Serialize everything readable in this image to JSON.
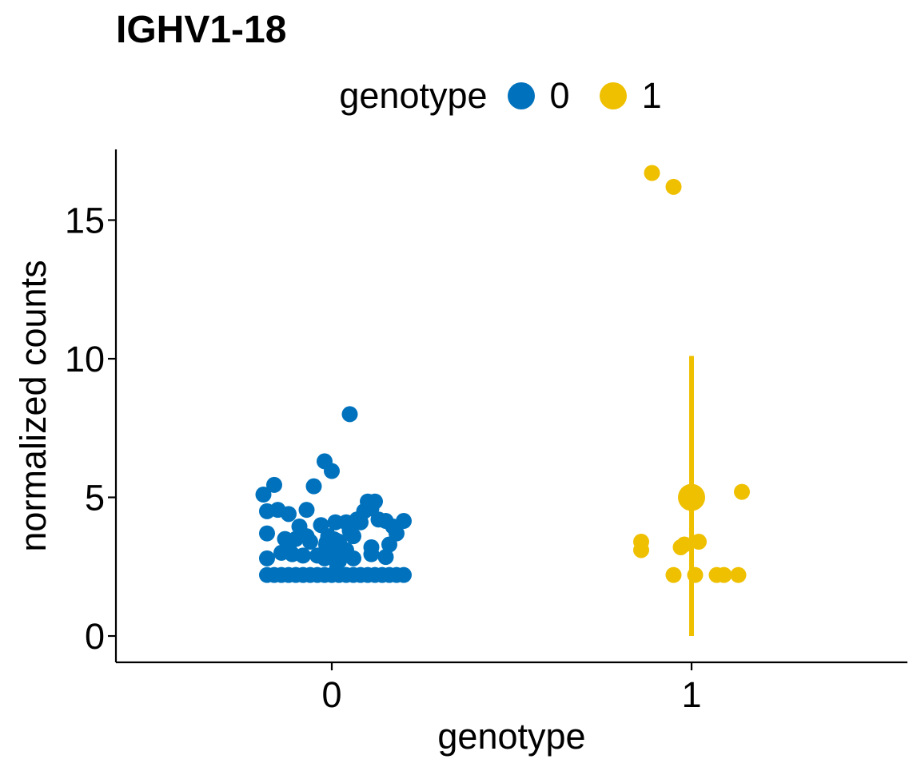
{
  "chart_data": {
    "type": "scatter",
    "title": "IGHV1-18",
    "xlabel": "genotype",
    "ylabel": "normalized counts",
    "categories": [
      "0",
      "1"
    ],
    "y_ticks": [
      0,
      5,
      10,
      15
    ],
    "ylim": [
      -0.95,
      17.55
    ],
    "xlim": [
      0.4,
      2.6
    ],
    "legend": {
      "title": "genotype",
      "position": "top",
      "entries": [
        {
          "label": "0",
          "color": "#0072BD"
        },
        {
          "label": "1",
          "color": "#EFC000"
        }
      ]
    },
    "grid": false,
    "series": [
      {
        "name": "0",
        "color": "#0072BD",
        "points": [
          [
            -0.19,
            5.1
          ],
          [
            -0.16,
            5.45
          ],
          [
            -0.18,
            4.5
          ],
          [
            -0.15,
            4.55
          ],
          [
            -0.12,
            4.4
          ],
          [
            -0.18,
            3.7
          ],
          [
            -0.13,
            3.5
          ],
          [
            -0.1,
            3.5
          ],
          [
            -0.12,
            3.2
          ],
          [
            -0.14,
            3.0
          ],
          [
            -0.11,
            2.95
          ],
          [
            -0.18,
            2.8
          ],
          [
            -0.07,
            3.6
          ],
          [
            -0.08,
            2.9
          ],
          [
            -0.06,
            3.4
          ],
          [
            -0.05,
            5.4
          ],
          [
            -0.07,
            4.55
          ],
          [
            -0.09,
            3.95
          ],
          [
            -0.04,
            2.9
          ],
          [
            -0.02,
            6.3
          ],
          [
            0.0,
            5.95
          ],
          [
            0.05,
            8.0
          ],
          [
            -0.03,
            4.0
          ],
          [
            -0.01,
            3.6
          ],
          [
            0.01,
            4.1
          ],
          [
            0.02,
            3.4
          ],
          [
            0.03,
            3.0
          ],
          [
            -0.02,
            2.8
          ],
          [
            0.0,
            3.3
          ],
          [
            0.04,
            4.1
          ],
          [
            0.05,
            3.8
          ],
          [
            0.06,
            3.6
          ],
          [
            0.04,
            3.1
          ],
          [
            0.06,
            2.8
          ],
          [
            0.02,
            2.7
          ],
          [
            0.07,
            4.2
          ],
          [
            0.08,
            4.1
          ],
          [
            0.09,
            4.5
          ],
          [
            0.1,
            4.85
          ],
          [
            0.12,
            4.85
          ],
          [
            0.11,
            4.6
          ],
          [
            0.11,
            3.2
          ],
          [
            0.11,
            2.95
          ],
          [
            0.13,
            4.2
          ],
          [
            0.15,
            4.15
          ],
          [
            0.17,
            3.95
          ],
          [
            0.18,
            3.7
          ],
          [
            0.16,
            3.3
          ],
          [
            0.15,
            2.85
          ],
          [
            0.2,
            4.15
          ],
          [
            -0.18,
            2.2
          ],
          [
            -0.16,
            2.2
          ],
          [
            -0.14,
            2.2
          ],
          [
            -0.12,
            2.2
          ],
          [
            -0.1,
            2.2
          ],
          [
            -0.08,
            2.2
          ],
          [
            -0.06,
            2.2
          ],
          [
            -0.04,
            2.2
          ],
          [
            -0.02,
            2.2
          ],
          [
            0.0,
            2.2
          ],
          [
            0.02,
            2.2
          ],
          [
            0.04,
            2.2
          ],
          [
            0.06,
            2.2
          ],
          [
            0.08,
            2.2
          ],
          [
            0.1,
            2.2
          ],
          [
            0.12,
            2.2
          ],
          [
            0.14,
            2.2
          ],
          [
            0.16,
            2.2
          ],
          [
            0.18,
            2.2
          ],
          [
            0.2,
            2.2
          ]
        ],
        "mean": 3.3,
        "range": [
          2.2,
          4.0
        ]
      },
      {
        "name": "1",
        "color": "#EFC000",
        "points": [
          [
            -0.11,
            16.7
          ],
          [
            -0.05,
            16.2
          ],
          [
            0.14,
            5.2
          ],
          [
            -0.14,
            3.4
          ],
          [
            -0.14,
            3.1
          ],
          [
            -0.03,
            3.2
          ],
          [
            -0.02,
            3.3
          ],
          [
            0.02,
            3.4
          ],
          [
            -0.05,
            2.2
          ],
          [
            0.01,
            2.2
          ],
          [
            0.07,
            2.2
          ],
          [
            0.09,
            2.2
          ],
          [
            0.13,
            2.2
          ]
        ],
        "mean": 5.0,
        "range": [
          0.0,
          10.1
        ]
      }
    ]
  }
}
